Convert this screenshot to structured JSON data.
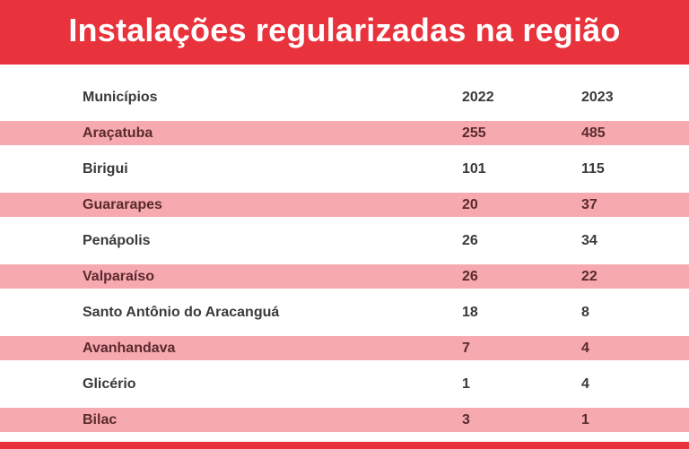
{
  "title": "Instalações regularizadas na região",
  "table": {
    "headers": {
      "municipio": "Municípios",
      "year1": "2022",
      "year2": "2023"
    },
    "rows": [
      {
        "municipio": "Araçatuba",
        "y2022": "255",
        "y2023": "485"
      },
      {
        "municipio": "Birigui",
        "y2022": "101",
        "y2023": "115"
      },
      {
        "municipio": "Guararapes",
        "y2022": "20",
        "y2023": "37"
      },
      {
        "municipio": "Penápolis",
        "y2022": "26",
        "y2023": "34"
      },
      {
        "municipio": "Valparaíso",
        "y2022": "26",
        "y2023": "22"
      },
      {
        "municipio": "Santo Antônio do Aracanguá",
        "y2022": "18",
        "y2023": "8"
      },
      {
        "municipio": "Avanhandava",
        "y2022": "7",
        "y2023": "4"
      },
      {
        "municipio": "Glicério",
        "y2022": "1",
        "y2023": "4"
      },
      {
        "municipio": "Bilac",
        "y2022": "3",
        "y2023": "1"
      }
    ]
  },
  "colors": {
    "banner": "#e8323c",
    "stripe": "#f6a9ae",
    "text": "#3a3a3a"
  }
}
